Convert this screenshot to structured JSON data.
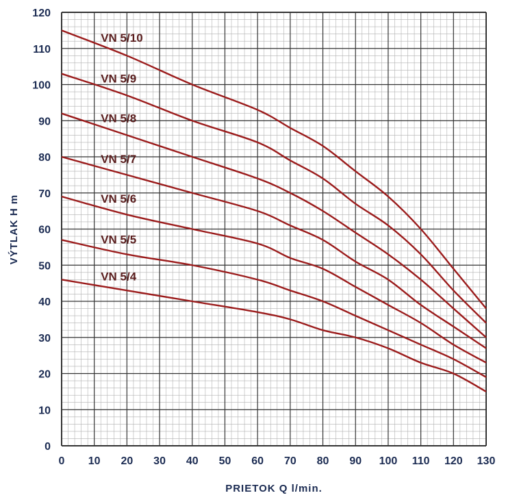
{
  "chart_data": {
    "type": "line",
    "title": "",
    "xlabel": "PRIETOK  Q  l/min.",
    "ylabel": "VÝTLAK  H  m",
    "xlim": [
      0,
      130
    ],
    "ylim": [
      0,
      120
    ],
    "x_ticks": [
      "0",
      "10",
      "20",
      "30",
      "40",
      "50",
      "60",
      "70",
      "80",
      "90",
      "100",
      "110",
      "120",
      "130"
    ],
    "y_ticks": [
      "0",
      "10",
      "20",
      "30",
      "40",
      "50",
      "60",
      "70",
      "80",
      "90",
      "100",
      "110",
      "120"
    ],
    "grid": true,
    "x": [
      0,
      20,
      40,
      60,
      70,
      80,
      90,
      100,
      110,
      120,
      130
    ],
    "series": [
      {
        "name": "VN 5/10",
        "values": [
          115,
          108,
          100,
          93,
          88,
          83,
          76,
          69,
          60,
          49,
          38
        ]
      },
      {
        "name": "VN 5/9",
        "values": [
          103,
          97,
          90,
          84,
          79,
          74,
          67,
          61,
          53,
          43,
          34
        ]
      },
      {
        "name": "VN 5/8",
        "values": [
          92,
          86,
          80,
          74,
          70,
          65,
          59,
          53,
          46,
          38,
          30
        ]
      },
      {
        "name": "VN 5/7",
        "values": [
          80,
          75,
          70,
          65,
          61,
          57,
          51,
          46,
          39,
          33,
          27
        ]
      },
      {
        "name": "VN 5/6",
        "values": [
          69,
          64,
          60,
          56,
          52,
          49,
          44,
          39,
          34,
          28,
          23
        ]
      },
      {
        "name": "VN 5/5",
        "values": [
          57,
          53,
          50,
          46,
          43,
          40,
          36,
          32,
          28,
          24,
          19
        ]
      },
      {
        "name": "VN 5/4",
        "values": [
          46,
          43,
          40,
          37,
          35,
          32,
          30,
          27,
          23,
          20,
          15
        ]
      }
    ],
    "colors": {
      "line": "#9b1b1b",
      "grid_major": "#333333",
      "grid_minor": "#b0b0b0",
      "text": "#1b2b52",
      "series_label": "#5a1e1e"
    }
  }
}
